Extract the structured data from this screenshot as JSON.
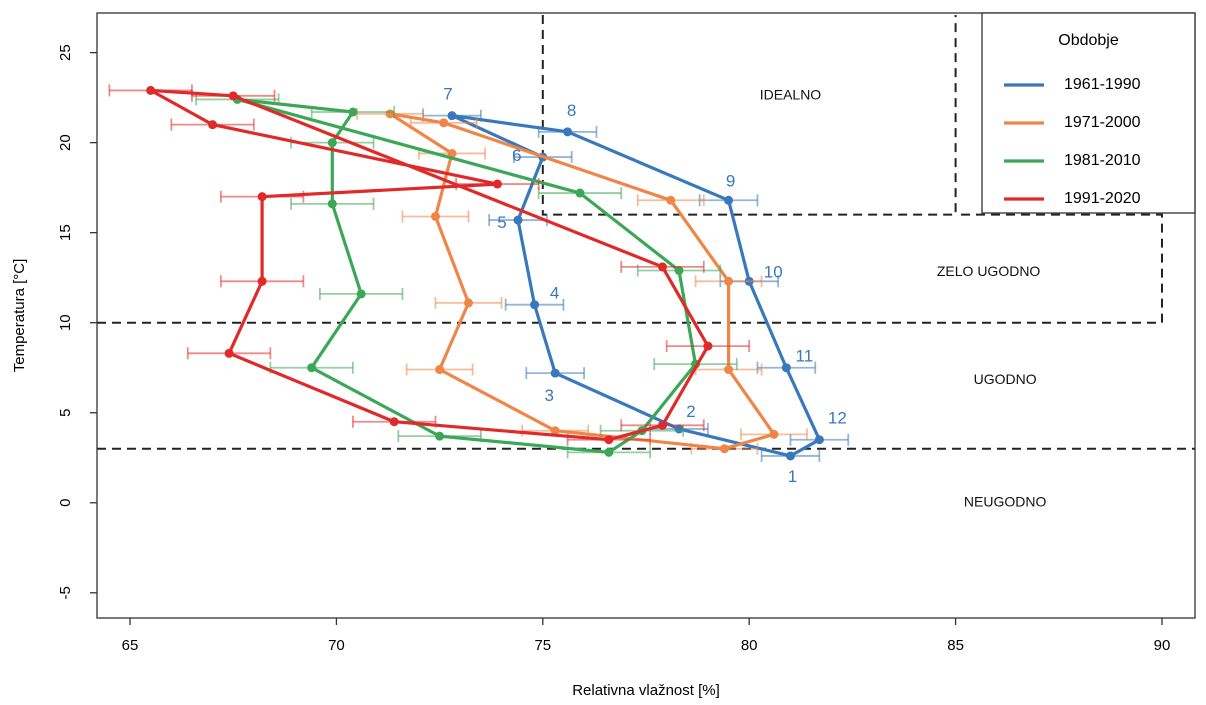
{
  "chart_data": {
    "type": "line",
    "xlabel": "Relativna vlažnost [%]",
    "ylabel": "Temperatura [°C]",
    "xlim": [
      64.2,
      90.8
    ],
    "ylim": [
      -6.4,
      27.2
    ],
    "xticks": [
      "65",
      "70",
      "75",
      "80",
      "85",
      "90"
    ],
    "yticks": [
      "-5",
      "0",
      "5",
      "10",
      "15",
      "20",
      "25"
    ],
    "grid": false,
    "legend": {
      "title": "Obdobje",
      "position": "top-right"
    },
    "zones": [
      {
        "label": "IDEALNO",
        "x": 81,
        "y": 22.6
      },
      {
        "label": "ZELO UGODNO",
        "x": 85.8,
        "y": 12.8
      },
      {
        "label": "UGODNO",
        "x": 86.2,
        "y": 6.8
      },
      {
        "label": "NEUGODNO",
        "x": 86.2,
        "y": 0
      }
    ],
    "series": [
      {
        "name": "1961-1990",
        "color": "#3A78BC",
        "x": [
          81.0,
          78.3,
          75.3,
          74.8,
          74.4,
          75.0,
          72.8,
          75.6,
          79.5,
          80.0,
          80.9,
          81.7
        ],
        "y": [
          2.6,
          4.1,
          7.2,
          11.0,
          15.7,
          19.2,
          21.5,
          20.6,
          16.8,
          12.3,
          7.5,
          3.5
        ],
        "xerr": 0.7,
        "labels": [
          "1",
          "2",
          "3",
          "4",
          "5",
          "6",
          "7",
          "8",
          "9",
          "10",
          "11",
          "12"
        ]
      },
      {
        "name": "1971-2000",
        "color": "#EF8648",
        "x": [
          79.4,
          75.3,
          72.5,
          73.2,
          72.4,
          72.8,
          71.3,
          72.6,
          78.1,
          79.5,
          79.5,
          80.6
        ],
        "y": [
          3.0,
          4.0,
          7.4,
          11.1,
          15.9,
          19.4,
          21.6,
          21.1,
          16.8,
          12.3,
          7.4,
          3.8
        ],
        "xerr": 0.8
      },
      {
        "name": "1981-2010",
        "color": "#3CA857",
        "x": [
          76.6,
          72.5,
          69.4,
          70.6,
          69.9,
          69.9,
          70.4,
          67.6,
          75.9,
          78.3,
          78.7,
          77.4
        ],
        "y": [
          2.8,
          3.7,
          7.5,
          11.6,
          16.6,
          20.0,
          21.7,
          22.4,
          17.2,
          12.9,
          7.7,
          4.0
        ],
        "xerr": 1.0
      },
      {
        "name": "1991-2020",
        "color": "#E02A2A",
        "x": [
          76.6,
          71.4,
          67.4,
          68.2,
          68.2,
          73.9,
          67.0,
          65.5,
          67.5,
          77.9,
          79.0,
          77.9
        ],
        "y": [
          3.5,
          4.5,
          8.3,
          12.3,
          17.0,
          17.7,
          21.0,
          22.9,
          22.6,
          13.1,
          8.7,
          4.3
        ],
        "xerr": 1.0
      }
    ]
  }
}
